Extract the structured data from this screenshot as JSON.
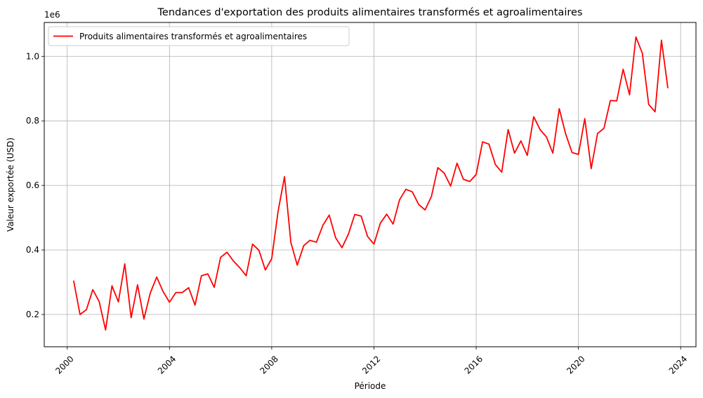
{
  "chart_data": {
    "type": "line",
    "title": "Tendances d'exportation des produits alimentaires transformés et agroalimentaires",
    "xlabel": "Période",
    "ylabel": "Valeur exportée (USD)",
    "y_scale_label": "1e6",
    "x_ticks": [
      2000,
      2004,
      2008,
      2012,
      2016,
      2020,
      2024
    ],
    "y_ticks": [
      "0.2",
      "0.4",
      "0.6",
      "0.8",
      "1.0"
    ],
    "y_tick_values": [
      0.2,
      0.4,
      0.6,
      0.8,
      1.0
    ],
    "xlim": [
      1999.1,
      2024.6
    ],
    "ylim": [
      0.1,
      1.105
    ],
    "grid": true,
    "legend_position": "top-left",
    "colors": {
      "series": "#ff0000",
      "grid": "#b0b0b0"
    },
    "series": [
      {
        "name": "Produits alimentaires transformés et agroalimentaires",
        "x": [
          2000.25,
          2000.5,
          2000.75,
          2001.0,
          2001.25,
          2001.5,
          2001.75,
          2002.0,
          2002.25,
          2002.5,
          2002.75,
          2003.0,
          2003.25,
          2003.5,
          2003.75,
          2004.0,
          2004.25,
          2004.5,
          2004.75,
          2005.0,
          2005.25,
          2005.5,
          2005.75,
          2006.0,
          2006.25,
          2006.5,
          2006.75,
          2007.0,
          2007.25,
          2007.5,
          2007.75,
          2008.0,
          2008.25,
          2008.5,
          2008.75,
          2009.0,
          2009.25,
          2009.5,
          2009.75,
          2010.0,
          2010.25,
          2010.5,
          2010.75,
          2011.0,
          2011.25,
          2011.5,
          2011.75,
          2012.0,
          2012.25,
          2012.5,
          2012.75,
          2013.0,
          2013.25,
          2013.5,
          2013.75,
          2014.0,
          2014.25,
          2014.5,
          2014.75,
          2015.0,
          2015.25,
          2015.5,
          2015.75,
          2016.0,
          2016.25,
          2016.5,
          2016.75,
          2017.0,
          2017.25,
          2017.5,
          2017.75,
          2018.0,
          2018.25,
          2018.5,
          2018.75,
          2019.0,
          2019.25,
          2019.5,
          2019.75,
          2020.0,
          2020.25,
          2020.5,
          2020.75,
          2021.0,
          2021.25,
          2021.5,
          2021.75,
          2022.0,
          2022.25,
          2022.5,
          2022.75,
          2023.0,
          2023.25,
          2023.5
        ],
        "values": [
          0.305,
          0.2,
          0.215,
          0.277,
          0.24,
          0.152,
          0.289,
          0.239,
          0.357,
          0.19,
          0.292,
          0.186,
          0.267,
          0.316,
          0.271,
          0.238,
          0.268,
          0.268,
          0.283,
          0.229,
          0.32,
          0.326,
          0.284,
          0.377,
          0.393,
          0.366,
          0.345,
          0.32,
          0.418,
          0.399,
          0.338,
          0.373,
          0.52,
          0.627,
          0.423,
          0.353,
          0.413,
          0.43,
          0.424,
          0.476,
          0.508,
          0.438,
          0.407,
          0.449,
          0.51,
          0.505,
          0.442,
          0.418,
          0.483,
          0.511,
          0.48,
          0.555,
          0.588,
          0.58,
          0.541,
          0.524,
          0.566,
          0.655,
          0.638,
          0.598,
          0.669,
          0.619,
          0.612,
          0.634,
          0.735,
          0.728,
          0.665,
          0.641,
          0.773,
          0.7,
          0.738,
          0.693,
          0.813,
          0.773,
          0.75,
          0.7,
          0.838,
          0.76,
          0.702,
          0.696,
          0.807,
          0.652,
          0.761,
          0.777,
          0.863,
          0.862,
          0.96,
          0.881,
          1.06,
          1.01,
          0.851,
          0.828,
          1.05,
          0.901
        ]
      }
    ]
  }
}
